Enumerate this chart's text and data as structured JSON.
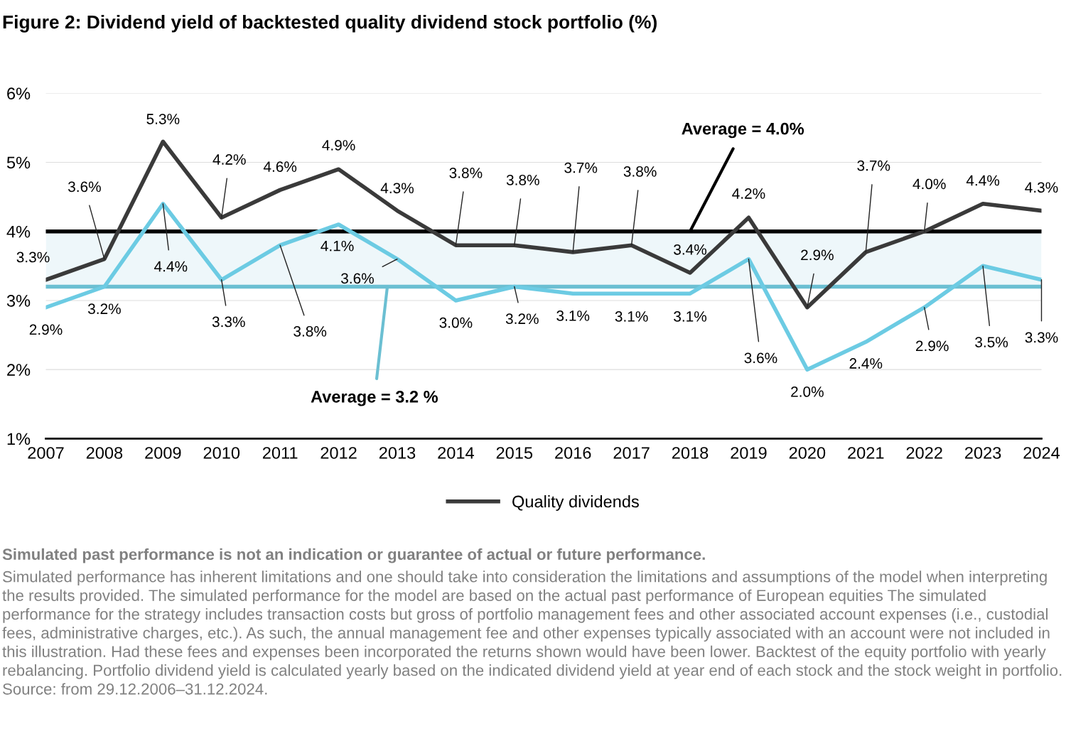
{
  "chart_data": {
    "type": "line",
    "title": "Figure 2: Dividend yield of backtested quality dividend stock portfolio (%)",
    "categories": [
      "2007",
      "2008",
      "2009",
      "2010",
      "2011",
      "2012",
      "2013",
      "2014",
      "2015",
      "2016",
      "2017",
      "2018",
      "2019",
      "2020",
      "2021",
      "2022",
      "2023",
      "2024"
    ],
    "series": [
      {
        "name": "Quality dividends",
        "color": "#3a3a3a",
        "values": [
          3.3,
          3.6,
          5.3,
          4.2,
          4.6,
          4.9,
          4.3,
          3.8,
          3.8,
          3.7,
          3.8,
          3.4,
          4.2,
          2.9,
          3.7,
          4.0,
          4.4,
          4.3
        ],
        "value_labels": [
          "3.3%",
          "3.6%",
          "5.3%",
          "4.2%",
          "4.6%",
          "4.9%",
          "4.3%",
          "3.8%",
          "3.8%",
          "3.7%",
          "3.8%",
          "3.4%",
          "4.2%",
          "2.9%",
          "3.7%",
          "4.0%",
          "4.4%",
          "4.3%"
        ]
      },
      {
        "color": "#6ccbe3",
        "values": [
          2.9,
          3.2,
          4.4,
          3.3,
          3.8,
          4.1,
          3.6,
          3.0,
          3.2,
          3.1,
          3.1,
          3.1,
          3.6,
          2.0,
          2.4,
          2.9,
          3.5,
          3.3
        ],
        "value_labels": [
          "2.9%",
          "3.2%",
          "4.4%",
          "3.3%",
          "3.8%",
          "4.1%",
          "3.6%",
          "3.0%",
          "3.2%",
          "3.1%",
          "3.1%",
          "3.1%",
          "3.6%",
          "2.0%",
          "2.4%",
          "2.9%",
          "3.5%",
          "3.3%"
        ]
      }
    ],
    "ylim": [
      1,
      6
    ],
    "yticks": [
      {
        "value": 1,
        "label": "1%"
      },
      {
        "value": 2,
        "label": "2%"
      },
      {
        "value": 3,
        "label": "3%"
      },
      {
        "value": 4,
        "label": "4%"
      },
      {
        "value": 5,
        "label": "5%"
      },
      {
        "value": 6,
        "label": "6%"
      }
    ],
    "ref_lines": [
      {
        "axis": "y",
        "value": 4.0,
        "label": "Average = 4.0%",
        "color": "#000000"
      },
      {
        "axis": "y",
        "value": 3.2,
        "label": "Average = 3.2 %",
        "color": "#6bbfd2"
      }
    ],
    "bands": [
      {
        "axis": "y",
        "from": 3.2,
        "to": 4.0,
        "color": "#eef7fa"
      }
    ],
    "grid": "y",
    "legend": "bottom",
    "annotations": [
      "Simulated past performance is not an indication or guarantee of actual or future performance.",
      "Simulated performance has inherent limitations and one should take into consideration the limitations and assumptions of the model when interpreting the results provided. The simulated performance for the model are based on the actual past performance of European equities The simulated performance for the strategy includes transaction costs but gross of portfolio management fees and other associated account expenses (i.e., custodial fees, administrative charges, etc.). As such, the annual management fee and other expenses typically associated with an account were not included in this illustration. Had these fees and expenses been incorporated the returns shown would have been lower. Backtest of the equity portfolio with yearly rebalancing. Portfolio dividend yield is calculated yearly based on the indicated dividend yield at year end of each stock and the stock weight in portfolio. Source: from 29.12.2006–31.12.2024."
    ]
  }
}
